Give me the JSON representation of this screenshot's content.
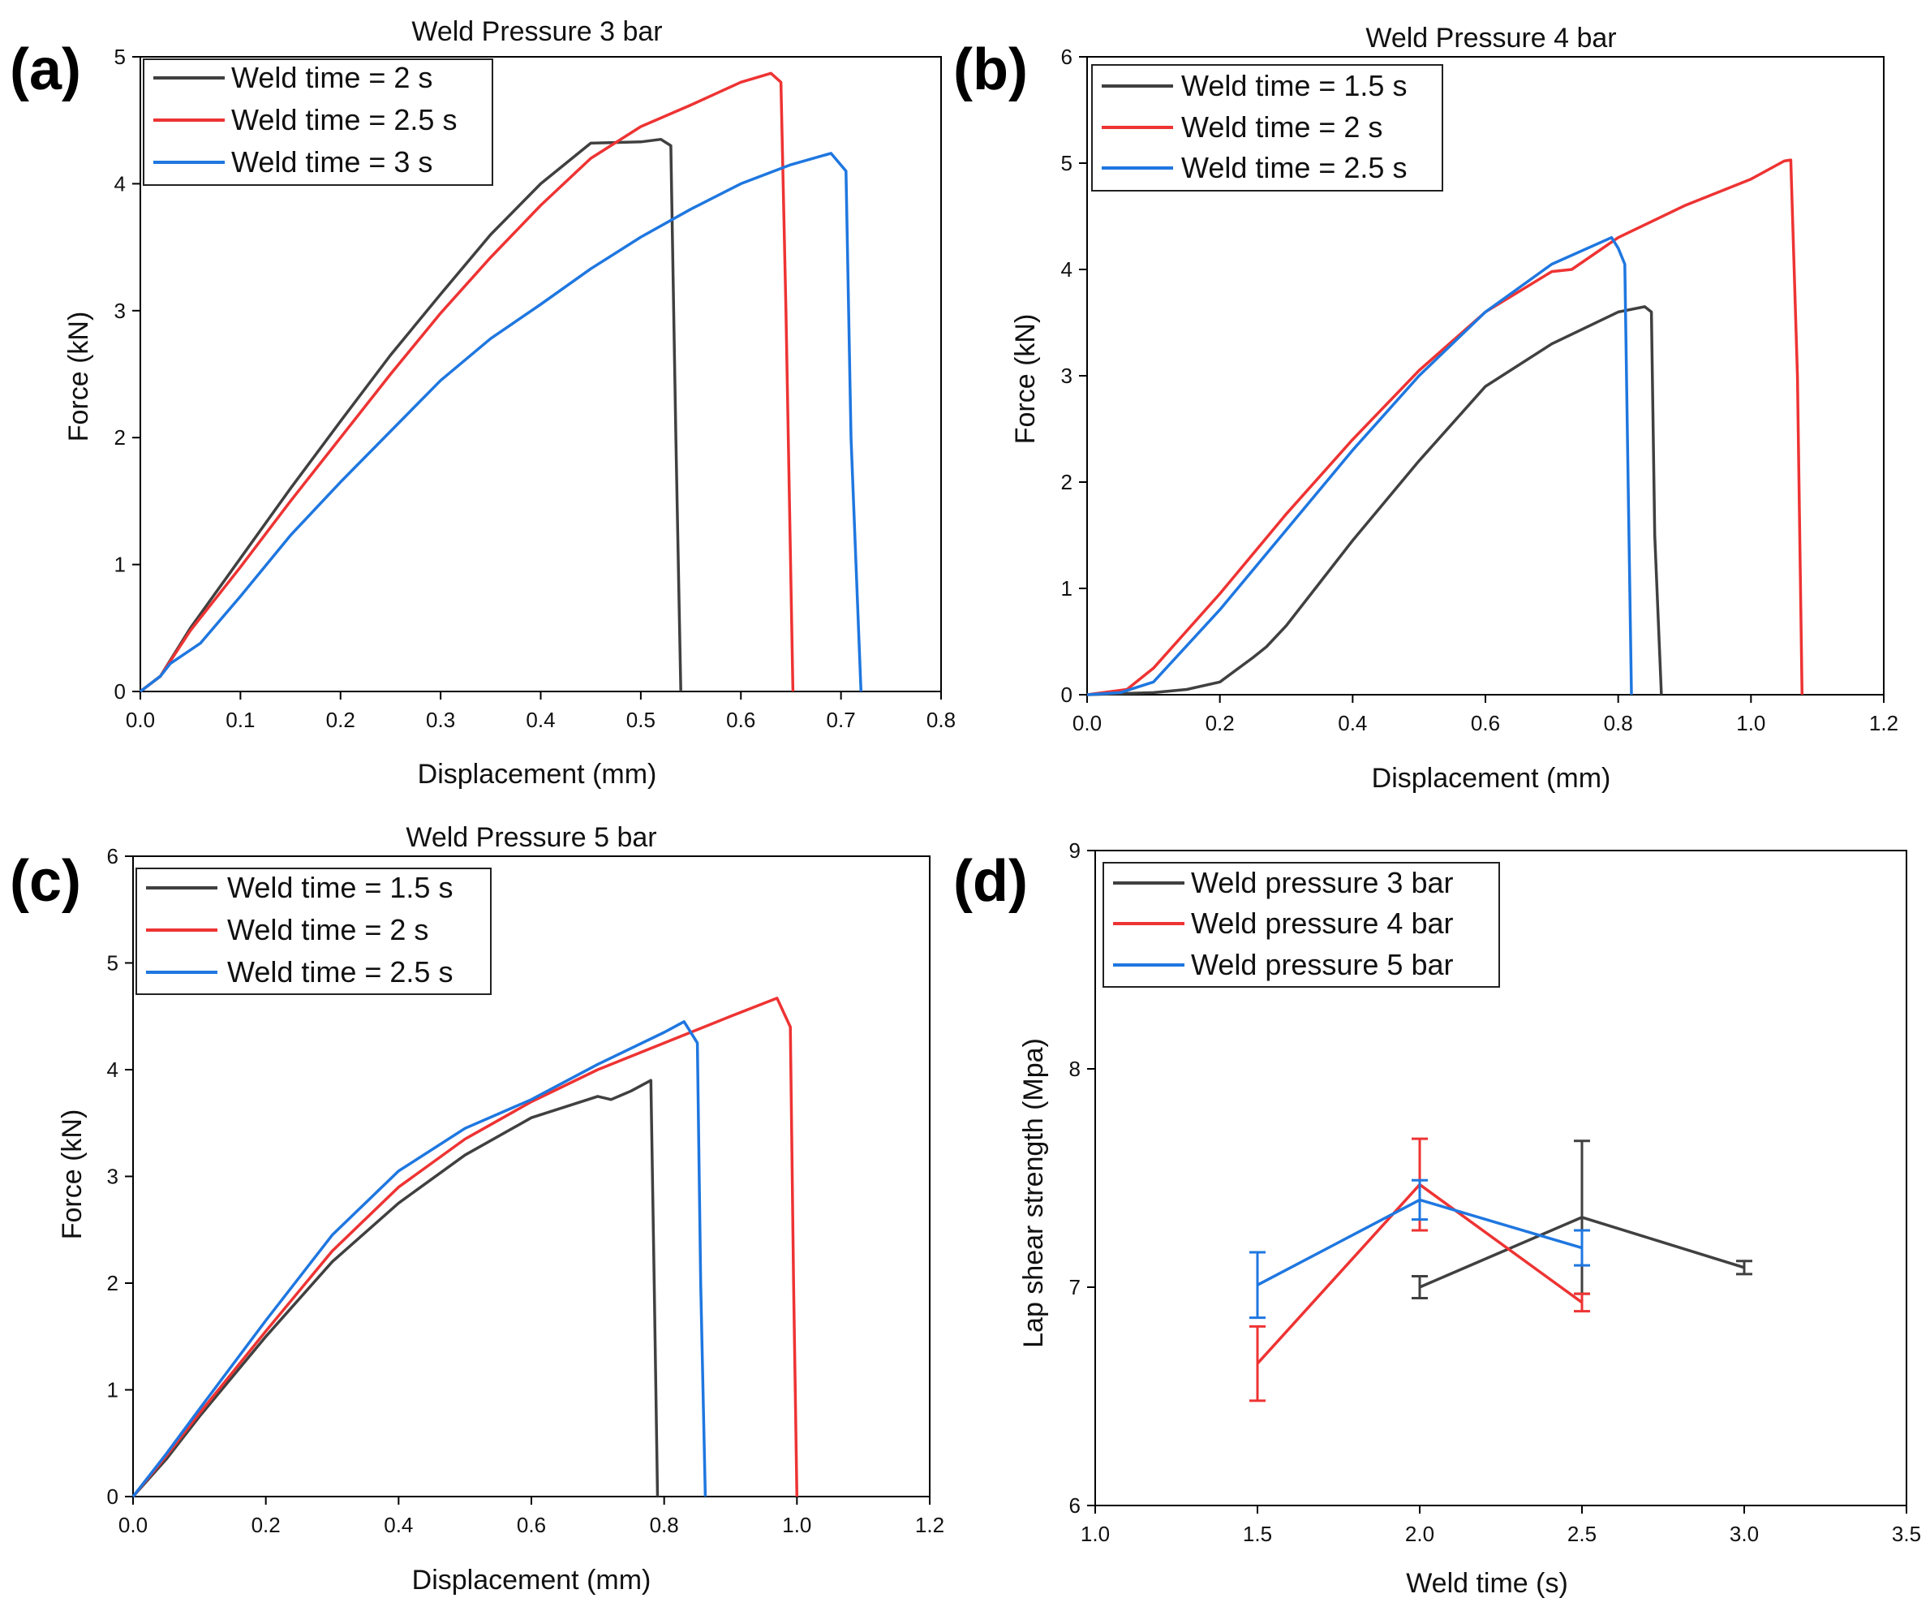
{
  "chart_data": [
    {
      "type": "line",
      "panel_label": "(a)",
      "title": "Weld Pressure 3 bar",
      "xlabel": "Displacement (mm)",
      "ylabel": "Force (kN)",
      "xlim": [
        0,
        0.8
      ],
      "ylim": [
        0,
        5
      ],
      "xticks": [
        "0.0",
        "0.1",
        "0.2",
        "0.3",
        "0.4",
        "0.5",
        "0.6",
        "0.7",
        "0.8"
      ],
      "yticks": [
        "0",
        "1",
        "2",
        "3",
        "4",
        "5"
      ],
      "grid": false,
      "legend": "top-left",
      "series": [
        {
          "name": "Weld time = 2 s",
          "color": "#404040",
          "x": [
            0,
            0.02,
            0.05,
            0.1,
            0.15,
            0.2,
            0.25,
            0.3,
            0.35,
            0.4,
            0.45,
            0.5,
            0.52,
            0.53,
            0.535,
            0.54
          ],
          "y": [
            0,
            0.12,
            0.5,
            1.05,
            1.6,
            2.13,
            2.65,
            3.13,
            3.6,
            4.0,
            4.32,
            4.33,
            4.35,
            4.3,
            2.0,
            0
          ]
        },
        {
          "name": "Weld time = 2.5 s",
          "color": "#ee3333",
          "x": [
            0,
            0.02,
            0.05,
            0.1,
            0.15,
            0.2,
            0.25,
            0.3,
            0.35,
            0.4,
            0.45,
            0.5,
            0.55,
            0.6,
            0.63,
            0.64,
            0.645,
            0.652
          ],
          "y": [
            0,
            0.12,
            0.48,
            0.98,
            1.5,
            2.0,
            2.5,
            2.98,
            3.42,
            3.83,
            4.2,
            4.45,
            4.62,
            4.8,
            4.87,
            4.8,
            3.0,
            0
          ]
        },
        {
          "name": "Weld time = 3 s",
          "color": "#1f77e0",
          "x": [
            0,
            0.02,
            0.03,
            0.06,
            0.1,
            0.15,
            0.2,
            0.25,
            0.3,
            0.35,
            0.4,
            0.45,
            0.5,
            0.55,
            0.6,
            0.65,
            0.69,
            0.705,
            0.71,
            0.72
          ],
          "y": [
            0,
            0.12,
            0.22,
            0.38,
            0.75,
            1.23,
            1.65,
            2.05,
            2.45,
            2.78,
            3.05,
            3.33,
            3.58,
            3.8,
            4.0,
            4.15,
            4.24,
            4.1,
            2.0,
            0
          ]
        }
      ]
    },
    {
      "type": "line",
      "panel_label": "(b)",
      "title": "Weld Pressure 4 bar",
      "xlabel": "Displacement (mm)",
      "ylabel": "Force (kN)",
      "xlim": [
        0,
        1.2
      ],
      "ylim": [
        0,
        6
      ],
      "xticks": [
        "0.0",
        "0.2",
        "0.4",
        "0.6",
        "0.8",
        "1.0",
        "1.2"
      ],
      "yticks": [
        "0",
        "1",
        "2",
        "3",
        "4",
        "5",
        "6"
      ],
      "grid": false,
      "legend": "top-left",
      "series": [
        {
          "name": "Weld time = 1.5 s",
          "color": "#404040",
          "x": [
            0,
            0.1,
            0.15,
            0.2,
            0.25,
            0.27,
            0.3,
            0.35,
            0.4,
            0.5,
            0.6,
            0.7,
            0.8,
            0.84,
            0.85,
            0.855,
            0.865
          ],
          "y": [
            0,
            0.02,
            0.05,
            0.12,
            0.35,
            0.45,
            0.65,
            1.05,
            1.45,
            2.2,
            2.9,
            3.3,
            3.6,
            3.65,
            3.6,
            1.5,
            0
          ]
        },
        {
          "name": "Weld time = 2 s",
          "color": "#ee3333",
          "x": [
            0,
            0.06,
            0.1,
            0.2,
            0.3,
            0.4,
            0.5,
            0.6,
            0.7,
            0.73,
            0.8,
            0.9,
            1.0,
            1.05,
            1.06,
            1.07,
            1.077
          ],
          "y": [
            0,
            0.05,
            0.25,
            0.95,
            1.7,
            2.4,
            3.05,
            3.6,
            3.98,
            4.0,
            4.3,
            4.6,
            4.85,
            5.02,
            5.03,
            3.0,
            0
          ]
        },
        {
          "name": "Weld time = 2.5 s",
          "color": "#1f77e0",
          "x": [
            0,
            0.05,
            0.1,
            0.2,
            0.3,
            0.4,
            0.5,
            0.6,
            0.7,
            0.79,
            0.8,
            0.81,
            0.815,
            0.82
          ],
          "y": [
            0,
            0.02,
            0.12,
            0.8,
            1.55,
            2.3,
            3.0,
            3.6,
            4.05,
            4.3,
            4.2,
            4.05,
            2.0,
            0
          ]
        }
      ]
    },
    {
      "type": "line",
      "panel_label": "(c)",
      "title": "Weld Pressure 5 bar",
      "xlabel": "Displacement (mm)",
      "ylabel": "Force (kN)",
      "xlim": [
        0,
        1.2
      ],
      "ylim": [
        0,
        6
      ],
      "xticks": [
        "0.0",
        "0.2",
        "0.4",
        "0.6",
        "0.8",
        "1.0",
        "1.2"
      ],
      "yticks": [
        "0",
        "1",
        "2",
        "3",
        "4",
        "5",
        "6"
      ],
      "grid": false,
      "legend": "top-left",
      "series": [
        {
          "name": "Weld time = 1.5 s",
          "color": "#404040",
          "x": [
            0,
            0.05,
            0.1,
            0.2,
            0.3,
            0.4,
            0.5,
            0.6,
            0.7,
            0.72,
            0.75,
            0.78,
            0.785,
            0.79
          ],
          "y": [
            0,
            0.35,
            0.75,
            1.5,
            2.2,
            2.75,
            3.2,
            3.55,
            3.75,
            3.72,
            3.8,
            3.9,
            2.0,
            0
          ]
        },
        {
          "name": "Weld time = 2 s",
          "color": "#ee3333",
          "x": [
            0,
            0.05,
            0.1,
            0.2,
            0.3,
            0.4,
            0.5,
            0.6,
            0.7,
            0.8,
            0.9,
            0.97,
            0.99,
            0.995,
            1.0
          ],
          "y": [
            0,
            0.38,
            0.78,
            1.55,
            2.3,
            2.9,
            3.35,
            3.7,
            4.0,
            4.25,
            4.5,
            4.67,
            4.4,
            2.0,
            0
          ]
        },
        {
          "name": "Weld time = 2.5 s",
          "color": "#1f77e0",
          "x": [
            0,
            0.05,
            0.1,
            0.2,
            0.3,
            0.4,
            0.5,
            0.6,
            0.7,
            0.8,
            0.83,
            0.85,
            0.855,
            0.862
          ],
          "y": [
            0,
            0.4,
            0.82,
            1.65,
            2.45,
            3.05,
            3.45,
            3.72,
            4.05,
            4.35,
            4.45,
            4.25,
            2.0,
            0
          ]
        }
      ]
    },
    {
      "type": "line",
      "panel_label": "(d)",
      "title": "",
      "xlabel": "Weld time (s)",
      "ylabel": "Lap shear strength (Mpa)",
      "xlim": [
        1.0,
        3.5
      ],
      "ylim": [
        6,
        9
      ],
      "xticks": [
        "1.0",
        "1.5",
        "2.0",
        "2.5",
        "3.0",
        "3.5"
      ],
      "yticks": [
        "6",
        "7",
        "8",
        "9"
      ],
      "grid": false,
      "legend": "top-left",
      "series": [
        {
          "name": "Weld pressure 3 bar",
          "color": "#404040",
          "x": [
            2.0,
            2.5,
            3.0
          ],
          "y": [
            7.0,
            7.32,
            7.09
          ],
          "yerr": [
            0.05,
            0.35,
            0.03
          ]
        },
        {
          "name": "Weld pressure 4 bar",
          "color": "#ee3333",
          "x": [
            1.5,
            2.0,
            2.5
          ],
          "y": [
            6.65,
            7.47,
            6.93
          ],
          "yerr": [
            0.17,
            0.21,
            0.04
          ]
        },
        {
          "name": "Weld pressure 5 bar",
          "color": "#1f77e0",
          "x": [
            1.5,
            2.0,
            2.5
          ],
          "y": [
            7.01,
            7.4,
            7.18
          ],
          "yerr": [
            0.15,
            0.09,
            0.08
          ]
        }
      ]
    }
  ]
}
